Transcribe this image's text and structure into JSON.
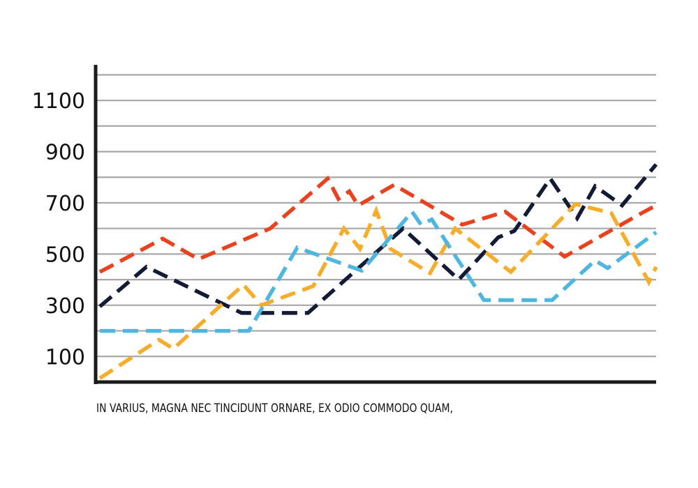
{
  "caption": "IN VARIUS, MAGNA NEC TINCIDUNT ORNARE, EX ODIO COMMODO QUAM,",
  "chart_data": {
    "type": "line",
    "title": "",
    "xlabel": "",
    "ylabel": "",
    "ylim": [
      0,
      1220
    ],
    "yticks": [
      100,
      300,
      500,
      700,
      900,
      1100
    ],
    "grid": true,
    "x": [
      0,
      1,
      2,
      3,
      4,
      5,
      6,
      7,
      8,
      9,
      10,
      11,
      12,
      13,
      14,
      15,
      16,
      17,
      18,
      19,
      20,
      21,
      22,
      23,
      24,
      25,
      26,
      27,
      28,
      29,
      30,
      31
    ],
    "series": [
      {
        "color": "#e8421e",
        "points": [
          [
            0,
            430
          ],
          [
            3.5,
            560
          ],
          [
            5.5,
            480
          ],
          [
            9.5,
            600
          ],
          [
            12.7,
            795
          ],
          [
            13.3,
            715
          ],
          [
            13.9,
            745
          ],
          [
            14.4,
            690
          ],
          [
            16.4,
            770
          ],
          [
            20.2,
            615
          ],
          [
            22.6,
            665
          ],
          [
            25.9,
            490
          ],
          [
            30.2,
            660
          ],
          [
            31,
            690
          ]
        ]
      },
      {
        "color": "#131a33",
        "points": [
          [
            0,
            295
          ],
          [
            2.6,
            450
          ],
          [
            7.9,
            270
          ],
          [
            11.6,
            270
          ],
          [
            16.9,
            600
          ],
          [
            20,
            400
          ],
          [
            22.2,
            565
          ],
          [
            23.1,
            590
          ],
          [
            25.1,
            795
          ],
          [
            26.6,
            640
          ],
          [
            27.6,
            765
          ],
          [
            29.1,
            690
          ],
          [
            31,
            850
          ]
        ]
      },
      {
        "color": "#f6ad2c",
        "points": [
          [
            0,
            15
          ],
          [
            3.3,
            165
          ],
          [
            4.1,
            130
          ],
          [
            8,
            380
          ],
          [
            9,
            300
          ],
          [
            11.9,
            375
          ],
          [
            13.6,
            600
          ],
          [
            14.5,
            520
          ],
          [
            15.4,
            670
          ],
          [
            16.2,
            520
          ],
          [
            18.4,
            425
          ],
          [
            19.8,
            600
          ],
          [
            22.9,
            430
          ],
          [
            26.5,
            695
          ],
          [
            28.5,
            660
          ],
          [
            30.6,
            390
          ],
          [
            31,
            450
          ]
        ]
      },
      {
        "color": "#4fb6df",
        "points": [
          [
            0,
            200
          ],
          [
            8.3,
            200
          ],
          [
            11,
            525
          ],
          [
            14.6,
            435
          ],
          [
            17.4,
            665
          ],
          [
            17.9,
            615
          ],
          [
            18.5,
            635
          ],
          [
            21.4,
            320
          ],
          [
            25.2,
            320
          ],
          [
            27.6,
            475
          ],
          [
            28.3,
            445
          ],
          [
            31,
            585
          ]
        ]
      }
    ]
  },
  "colors": {
    "axis": "#1c1c1c",
    "grid": "#a8a8a8",
    "text": "#111111"
  }
}
